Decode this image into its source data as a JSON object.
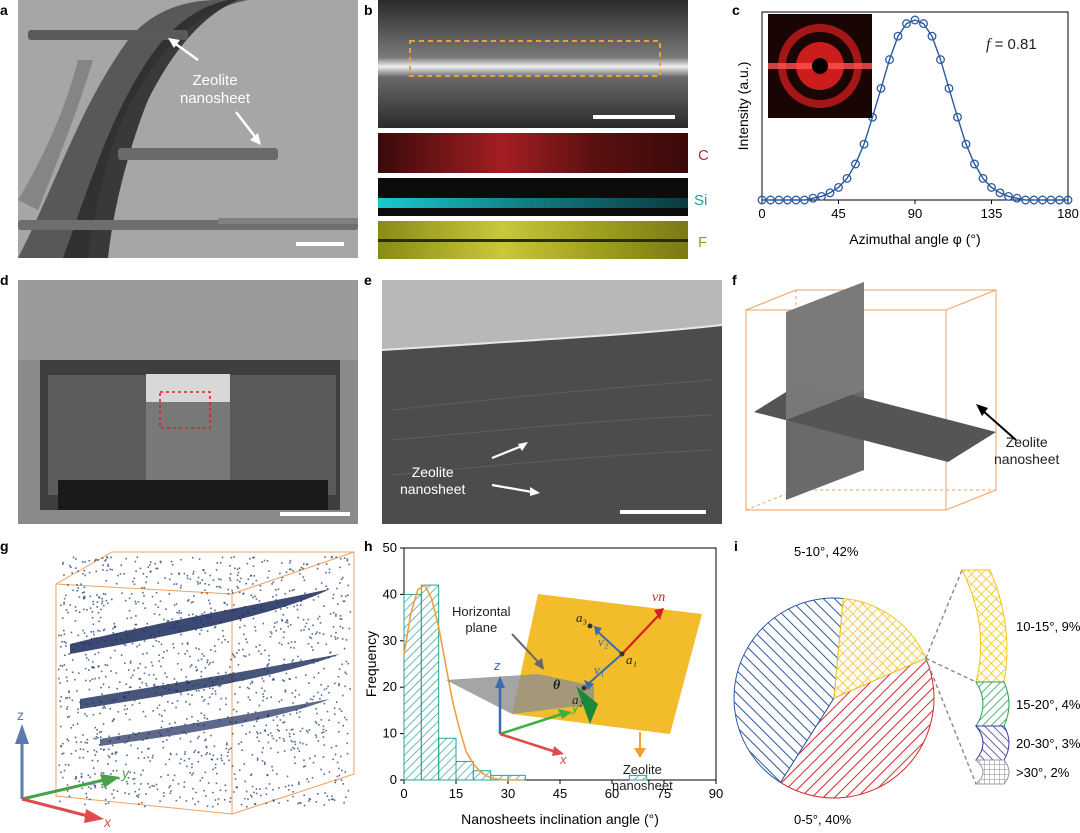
{
  "panels": {
    "a": {
      "label": "a",
      "annotation_line1": "Zeolite",
      "annotation_line2": "nanosheet"
    },
    "b": {
      "label": "b",
      "maps": [
        {
          "element": "C",
          "color": "#c0272d"
        },
        {
          "element": "Si",
          "color": "#1aa0a0"
        },
        {
          "element": "F",
          "color": "#9a9a1a"
        }
      ]
    },
    "c": {
      "label": "c",
      "annotation": "f = 0.81",
      "annotation_symbol": "f",
      "annotation_value": "= 0.81"
    },
    "d": {
      "label": "d"
    },
    "e": {
      "label": "e",
      "annotation_line1": "Zeolite",
      "annotation_line2": "nanosheet"
    },
    "f": {
      "label": "f",
      "annotation_line1": "Zeolite",
      "annotation_line2": "nanosheet"
    },
    "g": {
      "label": "g",
      "axes": {
        "z": "z",
        "y": "y",
        "x": "x"
      }
    },
    "h": {
      "label": "h",
      "inset": {
        "plane_line1": "Horizontal",
        "plane_line2": "plane",
        "sheet_line1": "Zeolite",
        "sheet_line2": "nanosheet",
        "theta": "θ",
        "vn": "vn",
        "v1": "v₁",
        "v2": "v₂",
        "a1": "a₁",
        "a2": "a₂",
        "a3": "a₃",
        "axis_z": "z",
        "axis_y": "y",
        "axis_x": "x"
      }
    },
    "i": {
      "label": "i"
    }
  },
  "chart_data": [
    {
      "panel": "c",
      "type": "line",
      "xlabel": "Azimuthal angle φ (°)",
      "ylabel": "Intensity (a.u.)",
      "xlim": [
        0,
        180
      ],
      "xticks": [
        "0",
        "45",
        "90",
        "135",
        "180"
      ],
      "x": [
        0,
        5,
        10,
        15,
        20,
        25,
        30,
        35,
        40,
        45,
        50,
        55,
        60,
        65,
        70,
        75,
        80,
        85,
        90,
        95,
        100,
        105,
        110,
        115,
        120,
        125,
        130,
        135,
        140,
        145,
        150,
        155,
        160,
        165,
        170,
        175,
        180
      ],
      "y": [
        0.0,
        0.0,
        0.0,
        0.0,
        0.0,
        0.0,
        0.01,
        0.02,
        0.04,
        0.07,
        0.12,
        0.2,
        0.31,
        0.46,
        0.62,
        0.78,
        0.91,
        0.98,
        1.0,
        0.98,
        0.91,
        0.78,
        0.62,
        0.46,
        0.31,
        0.2,
        0.12,
        0.07,
        0.04,
        0.02,
        0.01,
        0.0,
        0.0,
        0.0,
        0.0,
        0.0,
        0.0
      ],
      "marker": "open-circle",
      "color": "#2c5aa0"
    },
    {
      "panel": "h",
      "type": "bar",
      "xlabel": "Nanosheets inclination angle (°)",
      "ylabel": "Frequency",
      "xlim": [
        0,
        90
      ],
      "ylim": [
        0,
        50
      ],
      "xticks": [
        "0",
        "15",
        "30",
        "45",
        "60",
        "75",
        "90"
      ],
      "yticks": [
        "0",
        "10",
        "20",
        "30",
        "40",
        "50"
      ],
      "bin_width": 5,
      "bin_starts": [
        0,
        5,
        10,
        15,
        20,
        25,
        30,
        65
      ],
      "values": [
        40,
        42,
        9,
        4,
        2,
        1,
        1,
        1
      ],
      "fit_x": [
        0,
        2,
        4,
        6,
        8,
        10,
        12,
        14,
        16,
        18,
        20,
        22,
        24,
        26,
        28,
        30,
        32,
        34
      ],
      "fit_y": [
        27,
        36,
        41,
        42,
        39,
        33,
        25,
        17,
        11,
        6,
        3.5,
        1.8,
        0.8,
        0.3,
        0.1,
        0.05,
        0,
        0
      ],
      "bar_color": "#2aa198",
      "fit_color": "#f0a040"
    },
    {
      "panel": "i",
      "type": "pie",
      "slices": [
        {
          "label": "0-5°, 40%",
          "value": 40,
          "color": "#d62828"
        },
        {
          "label": "5-10°, 42%",
          "value": 42,
          "color": "#2c5aa0"
        },
        {
          "label": "10-15°, 9%",
          "value": 9,
          "color": "#f5c518"
        },
        {
          "label": "15-20°, 4%",
          "value": 4,
          "color": "#2e9e4e"
        },
        {
          "label": "20-30°, 3%",
          "value": 3,
          "color": "#3a3aa0"
        },
        {
          "label": ">30°, 2%",
          "value": 2,
          "color": "#9a9a9a"
        }
      ]
    }
  ]
}
